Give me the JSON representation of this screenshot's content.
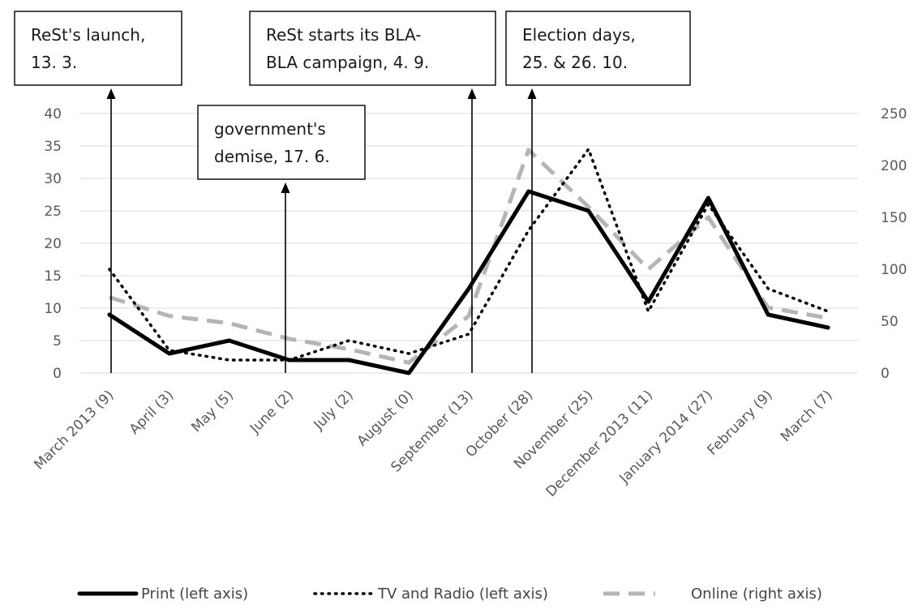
{
  "chart_data": {
    "type": "line",
    "title": "",
    "categories": [
      "March 2013 (9)",
      "April (3)",
      "May (5)",
      "June (2)",
      "July (2)",
      "August (0)",
      "September (13)",
      "October  (28)",
      "November (25)",
      "December 2013 (11)",
      "January 2014 (27)",
      "February (9)",
      "March (7)"
    ],
    "y_left": {
      "min": 0,
      "max": 40,
      "ticks": [
        0,
        5,
        10,
        15,
        20,
        25,
        30,
        35,
        40
      ]
    },
    "y_right": {
      "min": 0,
      "max": 250,
      "ticks": [
        0,
        50,
        100,
        150,
        200,
        250
      ]
    },
    "grid": true,
    "legend_position": "bottom",
    "series": [
      {
        "name": "Print (left axis)",
        "axis": "left",
        "style": "solid",
        "color": "#000000",
        "values": [
          9,
          3,
          5,
          2,
          2,
          0,
          13,
          28,
          25,
          11,
          27,
          9,
          7
        ]
      },
      {
        "name": "TV and Radio (left axis)",
        "axis": "left",
        "style": "dotted",
        "color": "#000000",
        "values": [
          16,
          3.5,
          2,
          2,
          5,
          3,
          6,
          22,
          34.5,
          9.5,
          26,
          13,
          9.5
        ]
      },
      {
        "name": "Online (right axis)",
        "axis": "right",
        "style": "dashed",
        "color": "#b5b5b5",
        "values": [
          73,
          55,
          48,
          33,
          23,
          10,
          55,
          215,
          160,
          100,
          150,
          63,
          53
        ]
      }
    ],
    "annotations": [
      {
        "id": "launch",
        "lines": [
          "ReSt's launch,",
          "13. 3."
        ],
        "x_index": 0
      },
      {
        "id": "demise",
        "lines": [
          "government's",
          "demise, 17. 6."
        ],
        "x_index": 3
      },
      {
        "id": "campaign",
        "lines": [
          "ReSt starts its BLA-",
          "BLA campaign, 4. 9."
        ],
        "x_index": 6
      },
      {
        "id": "election",
        "lines": [
          "Election days,",
          "25. & 26. 10."
        ],
        "x_index": 7
      }
    ]
  }
}
